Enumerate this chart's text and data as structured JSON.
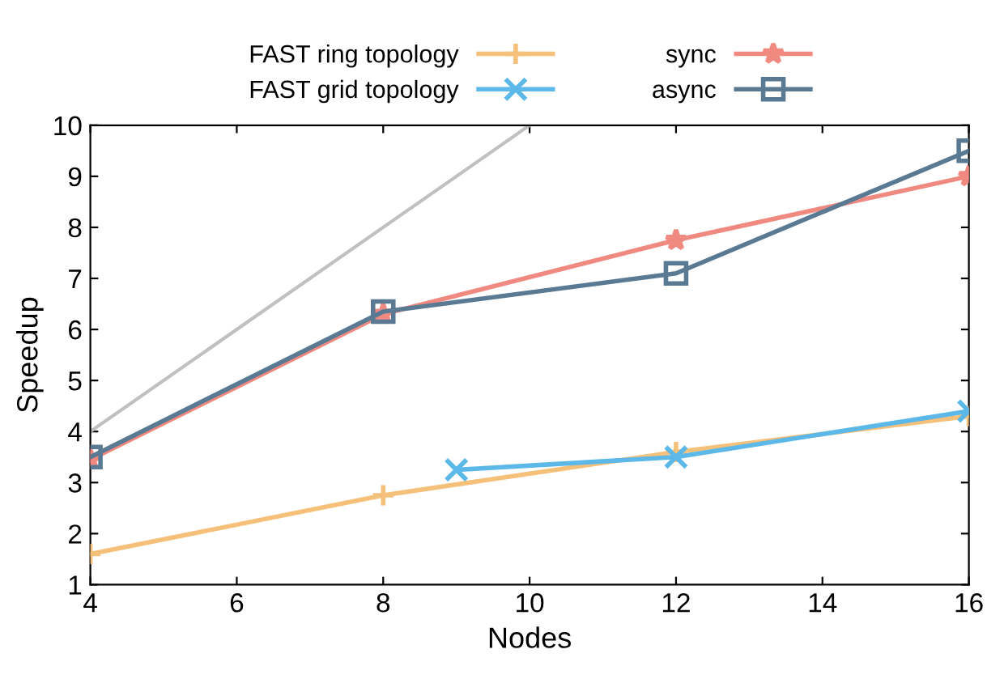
{
  "chart_data": {
    "type": "line",
    "xlabel": "Nodes",
    "ylabel": "Speedup",
    "xlim": [
      4,
      16
    ],
    "xticks": [
      4,
      6,
      8,
      10,
      12,
      14,
      16
    ],
    "ylim": [
      1,
      10
    ],
    "yticks": [
      1,
      2,
      3,
      4,
      5,
      6,
      7,
      8,
      9,
      10
    ],
    "grid": false,
    "legend": "top",
    "series": [
      {
        "name": "FAST ring topology",
        "color": "#f5c07a",
        "marker": "plus",
        "x": [
          4,
          8,
          12,
          16
        ],
        "values": [
          1.6,
          2.75,
          3.6,
          4.3
        ]
      },
      {
        "name": "FAST grid topology",
        "color": "#5bb8e8",
        "marker": "cross",
        "x": [
          9,
          12,
          16
        ],
        "values": [
          3.25,
          3.5,
          4.4
        ]
      },
      {
        "name": "sync",
        "color": "#f08a80",
        "marker": "star",
        "x": [
          4,
          8,
          12,
          16
        ],
        "values": [
          3.45,
          6.3,
          7.75,
          9.0
        ]
      },
      {
        "name": "async",
        "color": "#5a7a94",
        "marker": "square",
        "x": [
          4,
          8,
          12,
          16
        ],
        "values": [
          3.5,
          6.35,
          7.1,
          9.5
        ]
      },
      {
        "color": "#c0c0c0",
        "marker": "none",
        "x": [
          4,
          10
        ],
        "values": [
          4,
          10
        ]
      }
    ]
  }
}
